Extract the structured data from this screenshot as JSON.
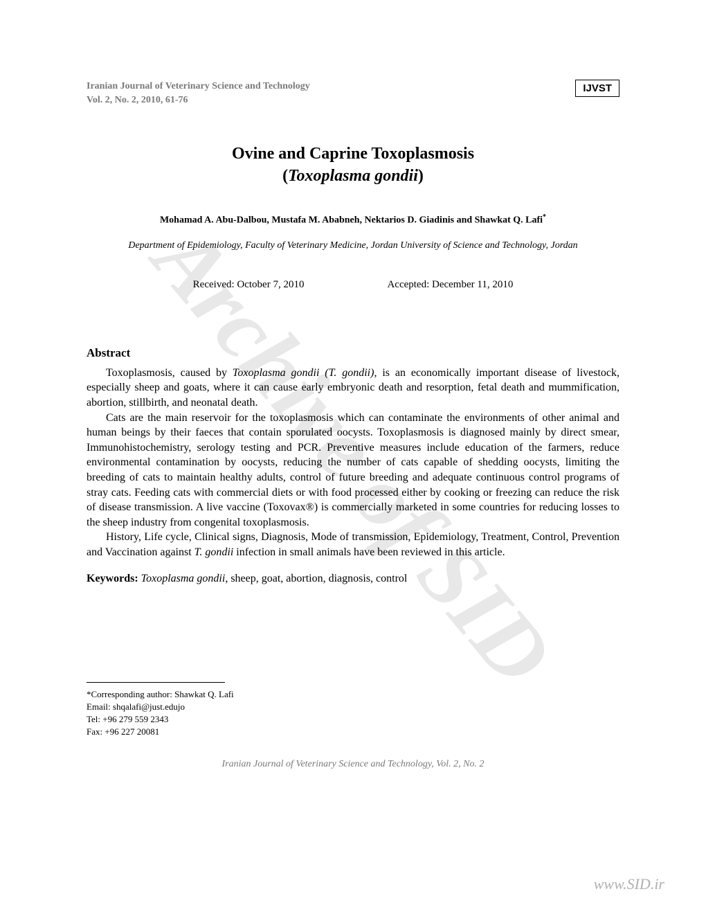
{
  "header": {
    "journal_name": "Iranian Journal of Veterinary Science and Technology",
    "volume_info": "Vol. 2, No. 2, 2010, 61-76",
    "badge": "IJVST"
  },
  "title": {
    "line1": "Ovine and Caprine Toxoplasmosis",
    "line2_open": "(",
    "line2_italic": "Toxoplasma gondii",
    "line2_close": ")"
  },
  "authors": "Mohamad A. Abu-Dalbou, Mustafa M. Ababneh, Nektarios D. Giadinis and Shawkat Q. Lafi",
  "author_superscript": "*",
  "affiliation": "Department of Epidemiology, Faculty of Veterinary Medicine, Jordan University of Science and Technology, Jordan",
  "dates": {
    "received": "Received: October 7, 2010",
    "accepted": "Accepted: December 11, 2010"
  },
  "abstract": {
    "heading": "Abstract",
    "para1_a": "Toxoplasmosis, caused by ",
    "para1_italic": "Toxoplasma gondii (T. gondii)",
    "para1_b": ", is an economically important disease of livestock, especially sheep and goats, where it can cause early embryonic death and resorption, fetal death and mummification, abortion, stillbirth, and neonatal death.",
    "para2": "Cats are the main reservoir for the toxoplasmosis which can contaminate the environments of other animal and human beings by their faeces that contain sporulated oocysts. Toxoplasmosis is diagnosed mainly by direct smear, Immunohistochemistry, serology testing and PCR. Preventive measures include education of the farmers, reduce environmental contamination by oocysts, reducing the number of cats capable of shedding oocysts, limiting the breeding of cats to maintain healthy adults, control of future breeding and adequate continuous control programs of stray cats. Feeding cats with commercial diets or with food processed either by cooking or freezing can reduce the risk of disease transmission. A live vaccine (Toxovax®) is commercially marketed in some countries for reducing losses to the sheep industry from congenital toxoplasmosis.",
    "para3_a": "History, Life cycle, Clinical signs, Diagnosis, Mode of transmission, Epidemiology, Treatment, Control, Prevention and Vaccination against ",
    "para3_italic": "T. gondii",
    "para3_b": " infection in small animals have been reviewed in this article."
  },
  "keywords": {
    "label": "Keywords: ",
    "italic": "Toxoplasma gondii",
    "rest": ", sheep, goat, abortion, diagnosis, control"
  },
  "footnote": {
    "corresponding": "*Corresponding author: Shawkat Q. Lafi",
    "email": "Email: shqalafi@just.edujo",
    "tel": "Tel: +96 279 559 2343",
    "fax": "Fax: +96 227 20081"
  },
  "footer_journal": "Iranian Journal of Veterinary Science and Technology, Vol. 2, No. 2",
  "watermark": "Archive of SID",
  "site_url": "www.SID.ir"
}
